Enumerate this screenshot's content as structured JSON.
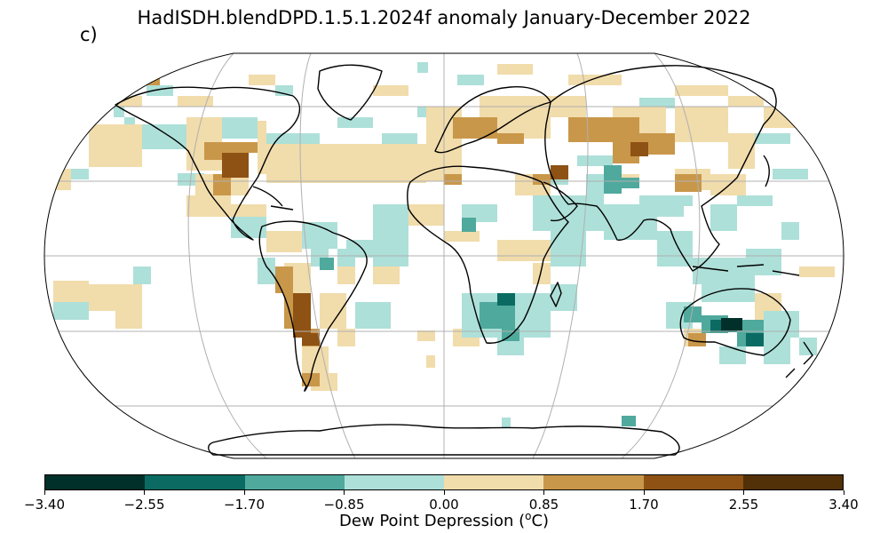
{
  "title": "HadISDH.blendDPD.1.5.1.2024f anomaly January-December 2022",
  "panel_label": "c)",
  "colorbar": {
    "label": "Dew Point Depression (",
    "label_unit_sup": "o",
    "label_unit": "C)",
    "ticks": [
      "−3.40",
      "−2.55",
      "−1.70",
      "−0.85",
      "0.00",
      "0.85",
      "1.70",
      "2.55",
      "3.40"
    ],
    "colors": [
      "#01302a",
      "#0b6b62",
      "#4fa99d",
      "#ade0d9",
      "#f1dcab",
      "#c9974a",
      "#8e5214",
      "#523008"
    ]
  },
  "map": {
    "projection": "Robinson",
    "coastline_color": "#000000",
    "graticule_color": "#b0b0b0"
  }
}
